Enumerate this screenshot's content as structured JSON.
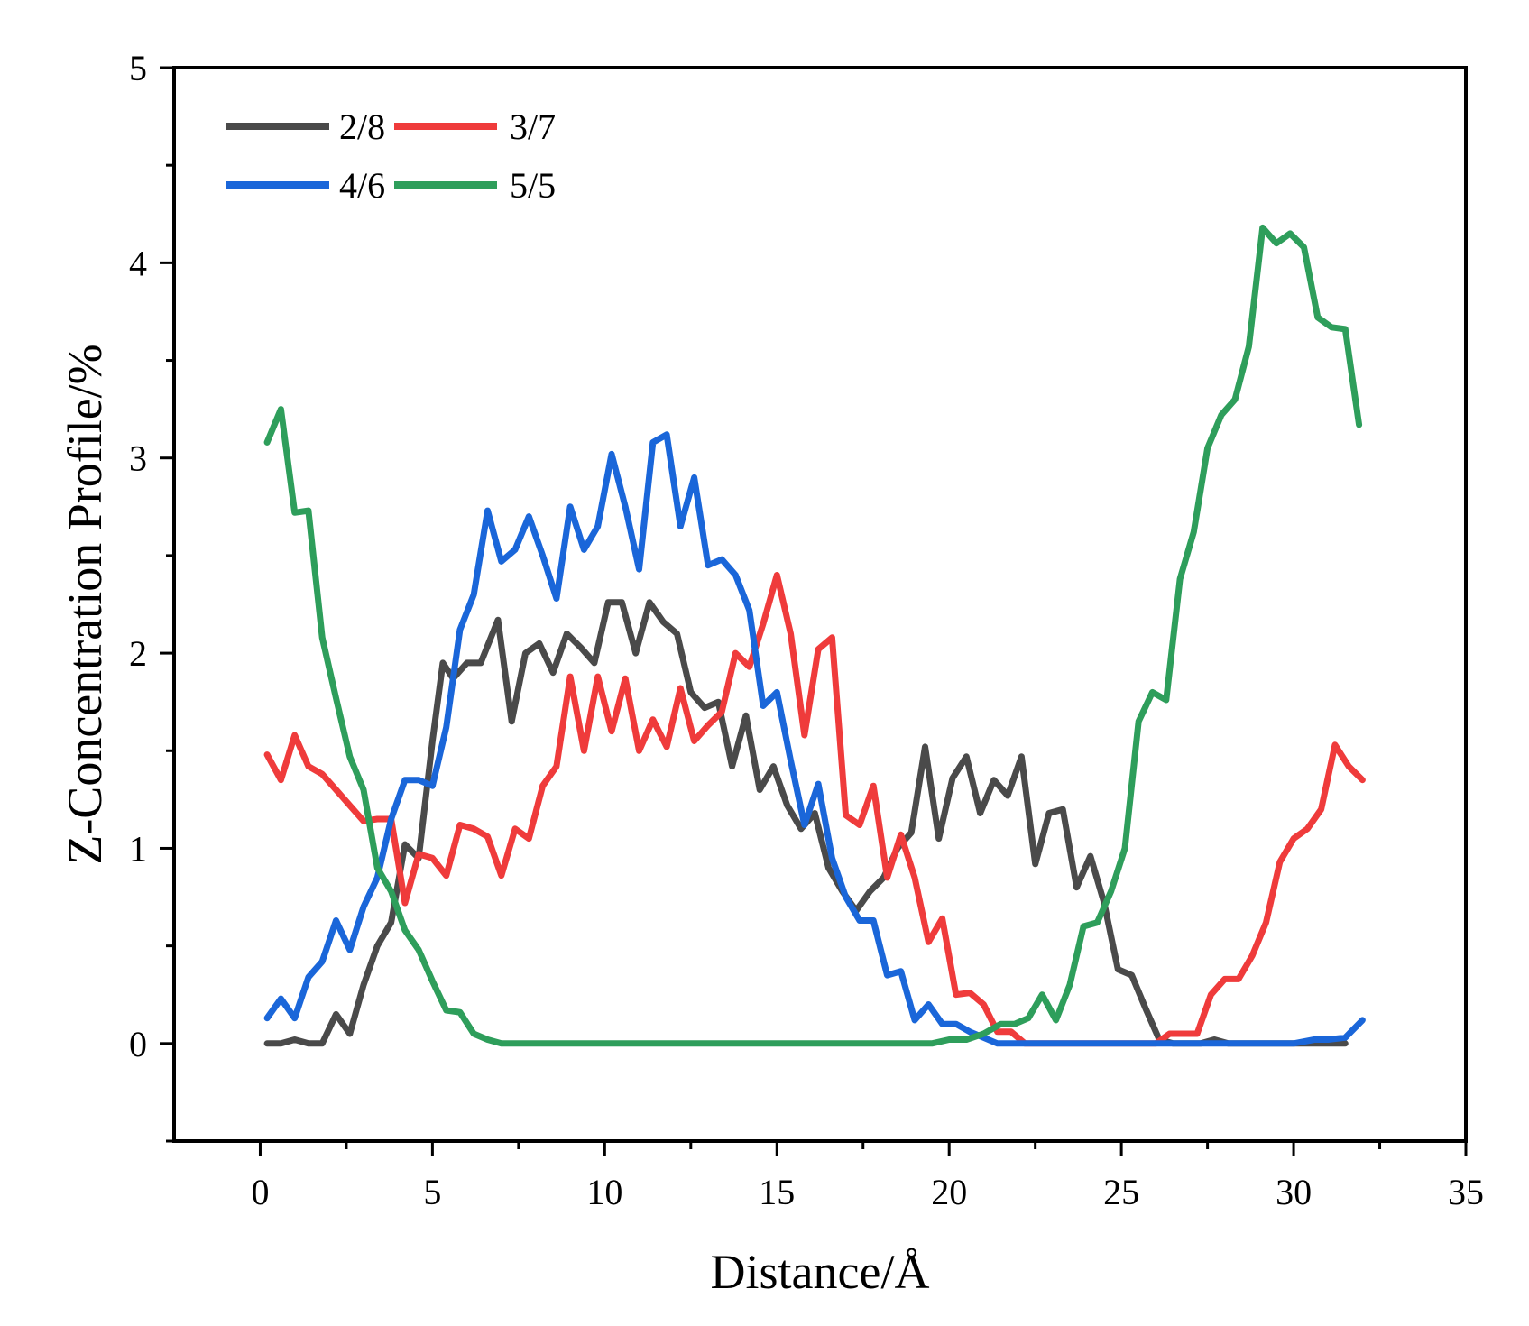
{
  "chart_data": {
    "type": "line",
    "xlabel": "Distance/Å",
    "ylabel": "Z-Concentration Profile/%",
    "xlim": [
      -2.5,
      35
    ],
    "ylim": [
      -0.5,
      5
    ],
    "xticks": [
      0,
      5,
      10,
      15,
      20,
      25,
      30,
      35
    ],
    "xtick_labels": [
      "0",
      "5",
      "10",
      "15",
      "20",
      "25",
      "30",
      "35"
    ],
    "yticks": [
      0,
      1,
      2,
      3,
      4,
      5
    ],
    "ytick_labels": [
      "0",
      "1",
      "2",
      "3",
      "4",
      "5"
    ],
    "legend": "top-left",
    "grid": false,
    "series": [
      {
        "name": "2/8",
        "color": "#4a4a4a",
        "points": [
          [
            0.2,
            0
          ],
          [
            0.6,
            0
          ],
          [
            1.0,
            0.02
          ],
          [
            1.4,
            0
          ],
          [
            1.8,
            0
          ],
          [
            2.2,
            0.15
          ],
          [
            2.6,
            0.05
          ],
          [
            3.0,
            0.3
          ],
          [
            3.4,
            0.5
          ],
          [
            3.8,
            0.62
          ],
          [
            4.2,
            1.02
          ],
          [
            4.6,
            0.95
          ],
          [
            5.0,
            1.55
          ],
          [
            5.3,
            1.95
          ],
          [
            5.6,
            1.87
          ],
          [
            6.0,
            1.95
          ],
          [
            6.4,
            1.95
          ],
          [
            6.9,
            2.17
          ],
          [
            7.3,
            1.65
          ],
          [
            7.7,
            2.0
          ],
          [
            8.1,
            2.05
          ],
          [
            8.5,
            1.9
          ],
          [
            8.9,
            2.1
          ],
          [
            9.3,
            2.03
          ],
          [
            9.7,
            1.95
          ],
          [
            10.1,
            2.26
          ],
          [
            10.5,
            2.26
          ],
          [
            10.9,
            2.0
          ],
          [
            11.3,
            2.26
          ],
          [
            11.7,
            2.16
          ],
          [
            12.1,
            2.1
          ],
          [
            12.5,
            1.8
          ],
          [
            12.9,
            1.72
          ],
          [
            13.3,
            1.75
          ],
          [
            13.7,
            1.42
          ],
          [
            14.1,
            1.68
          ],
          [
            14.5,
            1.3
          ],
          [
            14.9,
            1.42
          ],
          [
            15.3,
            1.22
          ],
          [
            15.7,
            1.1
          ],
          [
            16.1,
            1.18
          ],
          [
            16.5,
            0.9
          ],
          [
            16.9,
            0.78
          ],
          [
            17.3,
            0.68
          ],
          [
            17.7,
            0.78
          ],
          [
            18.1,
            0.85
          ],
          [
            18.5,
            1.0
          ],
          [
            18.9,
            1.08
          ],
          [
            19.3,
            1.52
          ],
          [
            19.7,
            1.05
          ],
          [
            20.1,
            1.36
          ],
          [
            20.5,
            1.47
          ],
          [
            20.9,
            1.18
          ],
          [
            21.3,
            1.35
          ],
          [
            21.7,
            1.27
          ],
          [
            22.1,
            1.47
          ],
          [
            22.5,
            0.92
          ],
          [
            22.9,
            1.18
          ],
          [
            23.3,
            1.2
          ],
          [
            23.7,
            0.8
          ],
          [
            24.1,
            0.96
          ],
          [
            24.5,
            0.72
          ],
          [
            24.9,
            0.38
          ],
          [
            25.3,
            0.35
          ],
          [
            25.7,
            0.18
          ],
          [
            26.1,
            0.02
          ],
          [
            26.5,
            0
          ],
          [
            26.9,
            0
          ],
          [
            27.3,
            0
          ],
          [
            27.7,
            0.02
          ],
          [
            28.1,
            0
          ],
          [
            28.5,
            0
          ],
          [
            29.0,
            0
          ],
          [
            29.5,
            0
          ],
          [
            30.0,
            0
          ],
          [
            30.5,
            0
          ],
          [
            31.0,
            0
          ],
          [
            31.5,
            0
          ]
        ]
      },
      {
        "name": "3/7",
        "color": "#ef3b3b",
        "points": [
          [
            0.2,
            1.48
          ],
          [
            0.6,
            1.35
          ],
          [
            1.0,
            1.58
          ],
          [
            1.4,
            1.42
          ],
          [
            1.8,
            1.38
          ],
          [
            2.2,
            1.3
          ],
          [
            2.6,
            1.22
          ],
          [
            3.0,
            1.14
          ],
          [
            3.4,
            1.15
          ],
          [
            3.8,
            1.15
          ],
          [
            4.2,
            0.72
          ],
          [
            4.6,
            0.97
          ],
          [
            5.0,
            0.95
          ],
          [
            5.4,
            0.86
          ],
          [
            5.8,
            1.12
          ],
          [
            6.2,
            1.1
          ],
          [
            6.6,
            1.06
          ],
          [
            7.0,
            0.86
          ],
          [
            7.4,
            1.1
          ],
          [
            7.8,
            1.05
          ],
          [
            8.2,
            1.32
          ],
          [
            8.6,
            1.42
          ],
          [
            9.0,
            1.88
          ],
          [
            9.4,
            1.5
          ],
          [
            9.8,
            1.88
          ],
          [
            10.2,
            1.6
          ],
          [
            10.6,
            1.87
          ],
          [
            11.0,
            1.5
          ],
          [
            11.4,
            1.66
          ],
          [
            11.8,
            1.52
          ],
          [
            12.2,
            1.82
          ],
          [
            12.6,
            1.55
          ],
          [
            13.0,
            1.63
          ],
          [
            13.4,
            1.7
          ],
          [
            13.8,
            2.0
          ],
          [
            14.2,
            1.93
          ],
          [
            14.6,
            2.15
          ],
          [
            15.0,
            2.4
          ],
          [
            15.4,
            2.1
          ],
          [
            15.8,
            1.58
          ],
          [
            16.2,
            2.02
          ],
          [
            16.6,
            2.08
          ],
          [
            17.0,
            1.17
          ],
          [
            17.4,
            1.12
          ],
          [
            17.8,
            1.32
          ],
          [
            18.2,
            0.85
          ],
          [
            18.6,
            1.07
          ],
          [
            19.0,
            0.85
          ],
          [
            19.4,
            0.52
          ],
          [
            19.8,
            0.64
          ],
          [
            20.2,
            0.25
          ],
          [
            20.6,
            0.26
          ],
          [
            21.0,
            0.2
          ],
          [
            21.4,
            0.06
          ],
          [
            21.8,
            0.06
          ],
          [
            22.2,
            0
          ],
          [
            22.6,
            0
          ],
          [
            23.0,
            0
          ],
          [
            23.5,
            0
          ],
          [
            24.0,
            0
          ],
          [
            24.5,
            0
          ],
          [
            25.0,
            0
          ],
          [
            25.5,
            0
          ],
          [
            26.0,
            0
          ],
          [
            26.4,
            0.05
          ],
          [
            26.8,
            0.05
          ],
          [
            27.2,
            0.05
          ],
          [
            27.6,
            0.25
          ],
          [
            28.0,
            0.33
          ],
          [
            28.4,
            0.33
          ],
          [
            28.8,
            0.45
          ],
          [
            29.2,
            0.62
          ],
          [
            29.6,
            0.93
          ],
          [
            30.0,
            1.05
          ],
          [
            30.4,
            1.1
          ],
          [
            30.8,
            1.2
          ],
          [
            31.2,
            1.53
          ],
          [
            31.6,
            1.42
          ],
          [
            32.0,
            1.35
          ]
        ]
      },
      {
        "name": "4/6",
        "color": "#1a66d9",
        "points": [
          [
            0.2,
            0.13
          ],
          [
            0.6,
            0.23
          ],
          [
            1.0,
            0.13
          ],
          [
            1.4,
            0.34
          ],
          [
            1.8,
            0.42
          ],
          [
            2.2,
            0.63
          ],
          [
            2.6,
            0.48
          ],
          [
            3.0,
            0.7
          ],
          [
            3.4,
            0.85
          ],
          [
            3.8,
            1.15
          ],
          [
            4.2,
            1.35
          ],
          [
            4.6,
            1.35
          ],
          [
            5.0,
            1.32
          ],
          [
            5.4,
            1.62
          ],
          [
            5.8,
            2.12
          ],
          [
            6.2,
            2.3
          ],
          [
            6.6,
            2.73
          ],
          [
            7.0,
            2.47
          ],
          [
            7.4,
            2.53
          ],
          [
            7.8,
            2.7
          ],
          [
            8.2,
            2.5
          ],
          [
            8.6,
            2.28
          ],
          [
            9.0,
            2.75
          ],
          [
            9.4,
            2.53
          ],
          [
            9.8,
            2.65
          ],
          [
            10.2,
            3.02
          ],
          [
            10.6,
            2.75
          ],
          [
            11.0,
            2.43
          ],
          [
            11.4,
            3.08
          ],
          [
            11.8,
            3.12
          ],
          [
            12.2,
            2.65
          ],
          [
            12.6,
            2.9
          ],
          [
            13.0,
            2.45
          ],
          [
            13.4,
            2.48
          ],
          [
            13.8,
            2.4
          ],
          [
            14.2,
            2.22
          ],
          [
            14.6,
            1.73
          ],
          [
            15.0,
            1.8
          ],
          [
            15.4,
            1.45
          ],
          [
            15.8,
            1.12
          ],
          [
            16.2,
            1.33
          ],
          [
            16.6,
            0.95
          ],
          [
            17.0,
            0.75
          ],
          [
            17.4,
            0.63
          ],
          [
            17.8,
            0.63
          ],
          [
            18.2,
            0.35
          ],
          [
            18.6,
            0.37
          ],
          [
            19.0,
            0.12
          ],
          [
            19.4,
            0.2
          ],
          [
            19.8,
            0.1
          ],
          [
            20.2,
            0.1
          ],
          [
            20.6,
            0.06
          ],
          [
            21.0,
            0.03
          ],
          [
            21.4,
            0
          ],
          [
            22.0,
            0
          ],
          [
            22.5,
            0
          ],
          [
            23.0,
            0
          ],
          [
            24.0,
            0
          ],
          [
            25.0,
            0
          ],
          [
            26.0,
            0
          ],
          [
            27.0,
            0
          ],
          [
            28.0,
            0
          ],
          [
            29.0,
            0
          ],
          [
            30.0,
            0
          ],
          [
            30.6,
            0.02
          ],
          [
            31.0,
            0.02
          ],
          [
            31.5,
            0.03
          ],
          [
            32.0,
            0.12
          ]
        ]
      },
      {
        "name": "5/5",
        "color": "#2e9e5b",
        "points": [
          [
            0.2,
            3.08
          ],
          [
            0.6,
            3.25
          ],
          [
            1.0,
            2.72
          ],
          [
            1.4,
            2.73
          ],
          [
            1.8,
            2.08
          ],
          [
            2.2,
            1.77
          ],
          [
            2.6,
            1.47
          ],
          [
            3.0,
            1.3
          ],
          [
            3.4,
            0.9
          ],
          [
            3.8,
            0.78
          ],
          [
            4.2,
            0.58
          ],
          [
            4.6,
            0.48
          ],
          [
            5.0,
            0.32
          ],
          [
            5.4,
            0.17
          ],
          [
            5.8,
            0.16
          ],
          [
            6.2,
            0.05
          ],
          [
            6.6,
            0.02
          ],
          [
            7.0,
            0
          ],
          [
            8.0,
            0
          ],
          [
            9.0,
            0
          ],
          [
            10.0,
            0
          ],
          [
            11.0,
            0
          ],
          [
            12.0,
            0
          ],
          [
            13.0,
            0
          ],
          [
            14.0,
            0
          ],
          [
            15.0,
            0
          ],
          [
            16.0,
            0
          ],
          [
            17.0,
            0
          ],
          [
            18.0,
            0
          ],
          [
            19.0,
            0
          ],
          [
            19.5,
            0
          ],
          [
            20.0,
            0.02
          ],
          [
            20.5,
            0.02
          ],
          [
            21.0,
            0.05
          ],
          [
            21.5,
            0.1
          ],
          [
            21.9,
            0.1
          ],
          [
            22.3,
            0.13
          ],
          [
            22.7,
            0.25
          ],
          [
            23.1,
            0.12
          ],
          [
            23.5,
            0.3
          ],
          [
            23.9,
            0.6
          ],
          [
            24.3,
            0.62
          ],
          [
            24.7,
            0.78
          ],
          [
            25.1,
            1.0
          ],
          [
            25.5,
            1.65
          ],
          [
            25.9,
            1.8
          ],
          [
            26.3,
            1.76
          ],
          [
            26.7,
            2.38
          ],
          [
            27.1,
            2.62
          ],
          [
            27.5,
            3.05
          ],
          [
            27.9,
            3.22
          ],
          [
            28.3,
            3.3
          ],
          [
            28.7,
            3.57
          ],
          [
            29.1,
            4.18
          ],
          [
            29.5,
            4.1
          ],
          [
            29.9,
            4.15
          ],
          [
            30.3,
            4.08
          ],
          [
            30.7,
            3.72
          ],
          [
            31.1,
            3.67
          ],
          [
            31.5,
            3.66
          ],
          [
            31.9,
            3.17
          ]
        ]
      }
    ]
  }
}
